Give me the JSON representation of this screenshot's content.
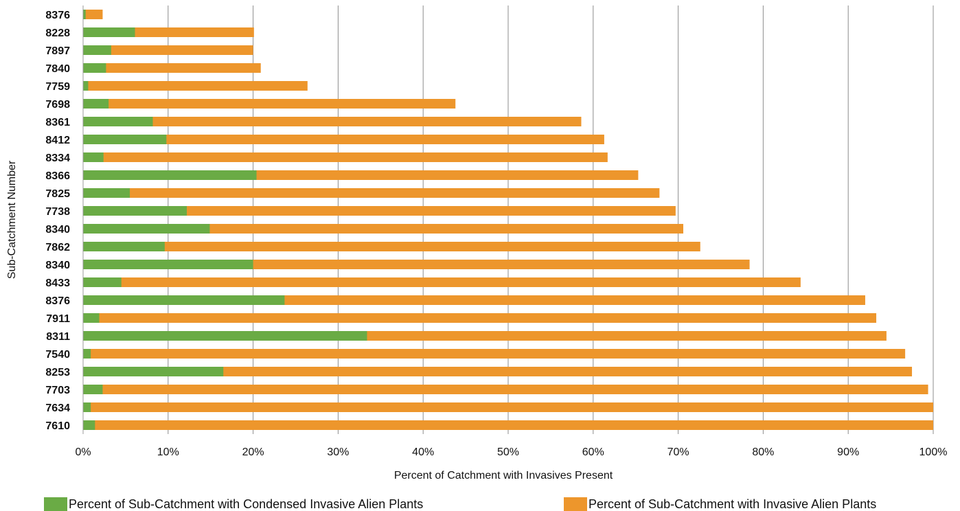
{
  "chart_data": {
    "type": "bar",
    "orientation": "horizontal",
    "stacked": false,
    "grid": true,
    "legend_position": "bottom",
    "xlabel": "Percent of Catchment with Invasives Present",
    "ylabel": "Sub-Catchment  Number",
    "xlim": [
      0,
      100
    ],
    "x_ticks": [
      "0%",
      "10%",
      "20%",
      "30%",
      "40%",
      "50%",
      "60%",
      "70%",
      "80%",
      "90%",
      "100%"
    ],
    "categories": [
      "8376",
      "8228",
      "7897",
      "7840",
      "7759",
      "7698",
      "8361",
      "8412",
      "8334",
      "8366",
      "7825",
      "7738",
      "8340",
      "7862",
      "8340",
      "8433",
      "8376",
      "7911",
      "8311",
      "7540",
      "8253",
      "7703",
      "7634",
      "7610"
    ],
    "series": [
      {
        "name": "Percent of Sub-Catchment with Invasive Alien Plants",
        "color": "#ED962C",
        "values": [
          2.3,
          20.1,
          20.0,
          20.9,
          26.4,
          43.8,
          58.6,
          61.3,
          61.7,
          65.3,
          67.8,
          69.7,
          70.6,
          72.6,
          78.4,
          84.4,
          92.0,
          93.3,
          94.5,
          96.7,
          97.5,
          99.4,
          100,
          100
        ]
      },
      {
        "name": "Percent of Sub-Catchment with Condensed Invasive Alien Plants",
        "color": "#6AAB45",
        "values": [
          0.3,
          6.1,
          3.3,
          2.7,
          0.6,
          3.0,
          8.2,
          9.8,
          2.4,
          20.4,
          5.5,
          12.2,
          14.9,
          9.6,
          20.0,
          4.5,
          23.7,
          1.9,
          33.4,
          0.9,
          16.5,
          2.3,
          0.9,
          1.4
        ]
      }
    ]
  },
  "legend": {
    "condensed_label": "Percent of Sub-Catchment with Condensed Invasive Alien Plants",
    "invasive_label": "Percent of Sub-Catchment with Invasive Alien Plants"
  }
}
